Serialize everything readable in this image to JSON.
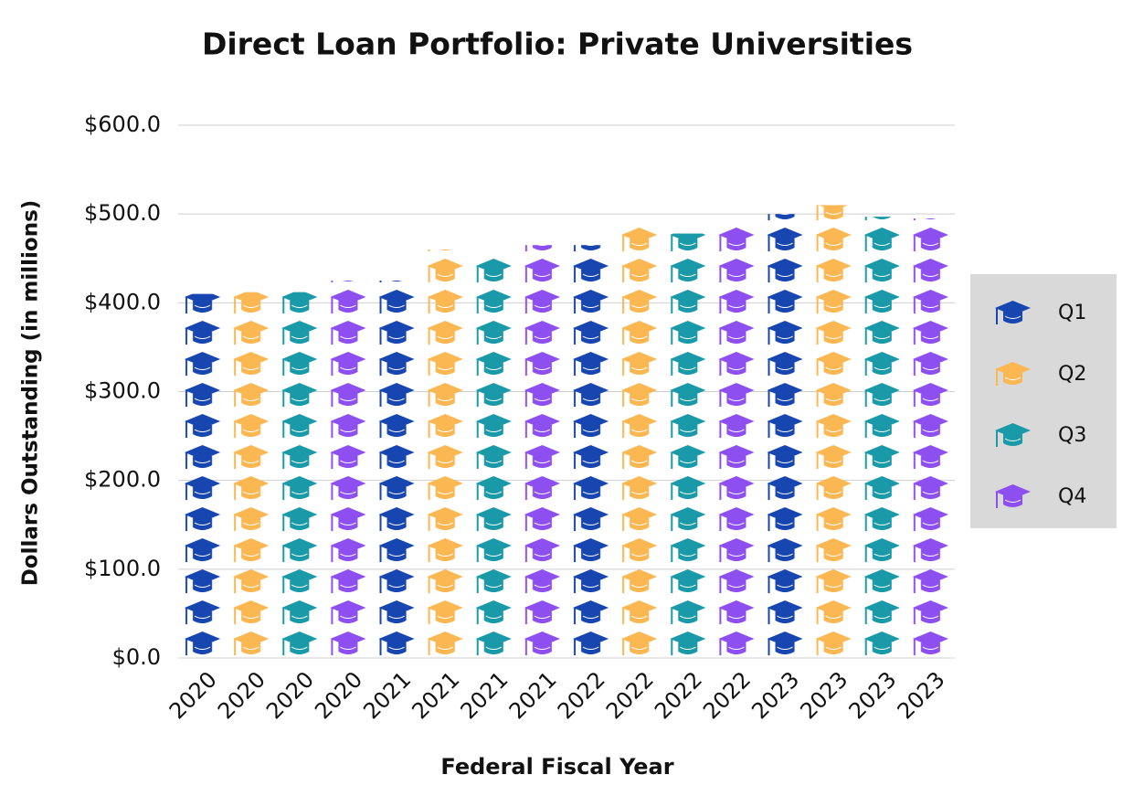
{
  "chart_data": {
    "type": "bar",
    "title": "Direct Loan Portfolio: Private Universities",
    "x_label": "Federal Fiscal Year",
    "y_label": "Dollars Outstanding (in millions)",
    "categories": [
      "2020",
      "2020",
      "2020",
      "2020",
      "2021",
      "2021",
      "2021",
      "2021",
      "2022",
      "2022",
      "2022",
      "2022",
      "2023",
      "2023",
      "2023",
      "2023"
    ],
    "series": [
      {
        "name": "Q1",
        "color": "#1746b0",
        "values": [
          410,
          null,
          null,
          null,
          425,
          null,
          null,
          null,
          465,
          null,
          null,
          null,
          500,
          null,
          null,
          null
        ]
      },
      {
        "name": "Q2",
        "color": "#fbb752",
        "values": [
          null,
          412,
          null,
          null,
          null,
          460,
          null,
          null,
          null,
          485,
          null,
          null,
          null,
          510,
          null,
          null
        ]
      },
      {
        "name": "Q3",
        "color": "#1a9aa8",
        "values": [
          null,
          null,
          412,
          null,
          null,
          null,
          450,
          null,
          null,
          null,
          478,
          null,
          null,
          null,
          497,
          null
        ]
      },
      {
        "name": "Q4",
        "color": "#8e4ff0",
        "values": [
          null,
          null,
          null,
          425,
          null,
          null,
          null,
          465,
          null,
          null,
          null,
          490,
          null,
          null,
          null,
          495
        ]
      }
    ],
    "ylim": [
      0,
      600
    ],
    "yticks": [
      {
        "value": 0,
        "label": "$0.0"
      },
      {
        "value": 100,
        "label": "$100.0"
      },
      {
        "value": 200,
        "label": "$200.0"
      },
      {
        "value": 300,
        "label": "$300.0"
      },
      {
        "value": 400,
        "label": "$400.0"
      },
      {
        "value": 500,
        "label": "$500.0"
      },
      {
        "value": 600,
        "label": "$600.0"
      }
    ],
    "grid": true,
    "legend": "right"
  }
}
